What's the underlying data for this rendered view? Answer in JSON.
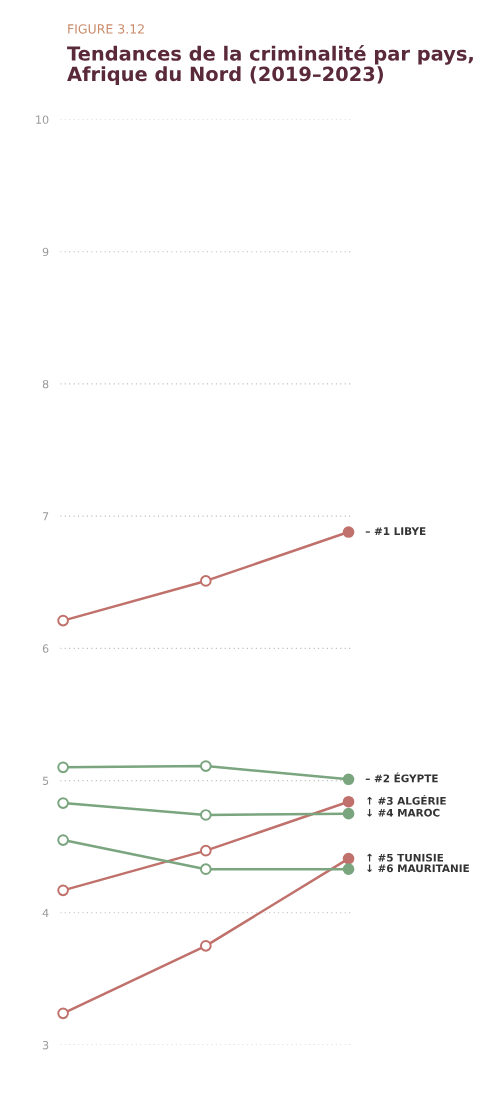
{
  "chart_data": {
    "type": "line",
    "subtitle": "FIGURE 3.12",
    "title": "Tendances de la criminalité par pays,\nAfrique du Nord (2019–2023)",
    "categories": [
      null,
      null,
      null
    ],
    "series": [
      {
        "name": "– #1 LIBYE",
        "color": "#c0716b",
        "values": [
          6.21,
          6.51,
          6.88
        ]
      },
      {
        "name": "– #2 ÉGYPTE",
        "color": "#7aa57f",
        "values": [
          5.1,
          5.11,
          5.01
        ]
      },
      {
        "name": "↑ #3 ALGÉRIE",
        "color": "#c0716b",
        "values": [
          4.17,
          4.47,
          4.84
        ]
      },
      {
        "name": "↓ #4 MAROC",
        "color": "#7aa57f",
        "values": [
          4.83,
          4.74,
          4.75
        ]
      },
      {
        "name": "↑ #5 TUNISIE",
        "color": "#c0716b",
        "values": [
          3.24,
          3.75,
          4.41
        ]
      },
      {
        "name": "↓ #6 MAURITANIE",
        "color": "#7aa57f",
        "values": [
          4.55,
          4.33,
          4.33
        ]
      }
    ],
    "ylim": [
      3,
      10
    ],
    "yticks": [
      3,
      4,
      5,
      6,
      7,
      8,
      9,
      10
    ],
    "grid": "y",
    "tick_labels": "y",
    "marker": "circle",
    "line_style": "solid",
    "legend": false
  }
}
